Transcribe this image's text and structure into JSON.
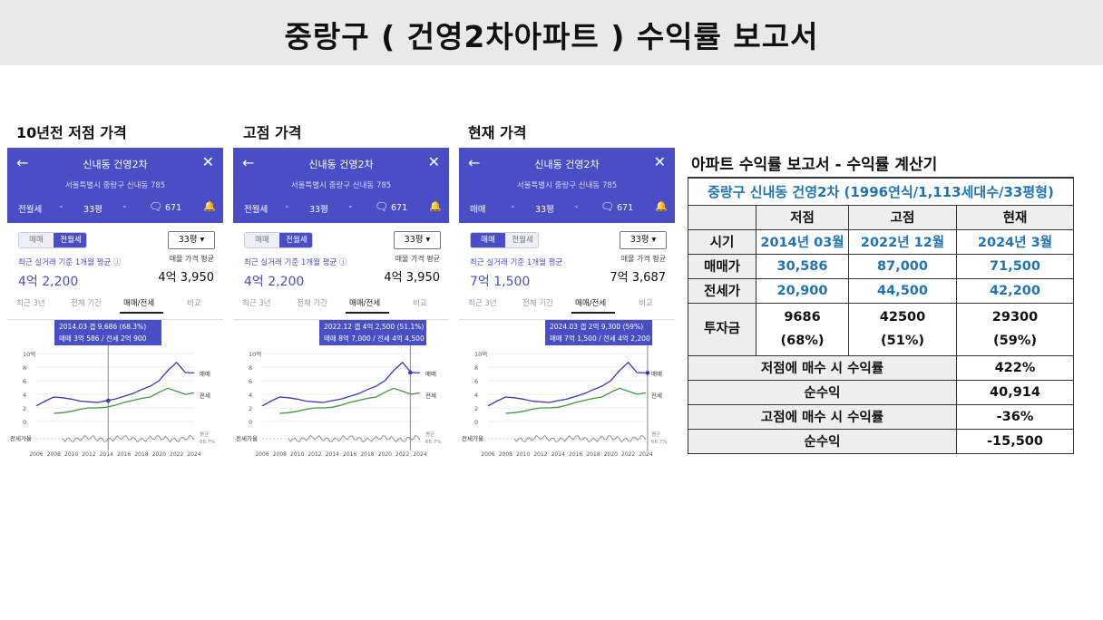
{
  "slide": {
    "title": "중랑구 ( 건영2차아파트 ) 수익률 보고서"
  },
  "sections": [
    {
      "label": "10년전 저점 가격"
    },
    {
      "label": "고점 가격"
    },
    {
      "label": "현재 가격"
    }
  ],
  "phones": [
    {
      "header": {
        "back_icon": "←",
        "title": "신내동 건영2차",
        "close_icon": "✕",
        "address": "서울특별시 중랑구 신내동 785",
        "type_select": "전월세",
        "size_select": "33평",
        "comment_count": "671"
      },
      "toggle": {
        "left": "매매",
        "right": "전월세",
        "active": "right"
      },
      "size_box": "33평 ▾",
      "avg_label": "최근 실거래 기준 1개월 평균 ⓘ",
      "avg_price": "4억 2,200",
      "listing_label": "매물 가격 평균",
      "listing_price": "4억 3,950",
      "tabs": [
        "최근 3년",
        "전체 기간",
        "매매/전세",
        "비교"
      ],
      "tooltip": {
        "line1": "2014.03  갭 9,686 (68.3%)",
        "line2": "매매 3억 586 / 전세 2억 900"
      },
      "marker_year": 2014.2
    },
    {
      "header": {
        "back_icon": "←",
        "title": "신내동 건영2차",
        "close_icon": "✕",
        "address": "서울특별시 중랑구 신내동 785",
        "type_select": "전월세",
        "size_select": "33평",
        "comment_count": "671"
      },
      "toggle": {
        "left": "매매",
        "right": "전월세",
        "active": "right"
      },
      "size_box": "33평 ▾",
      "avg_label": "최근 실거래 기준 1개월 평균 ⓘ",
      "avg_price": "4억 2,200",
      "listing_label": "매물 가격 평균",
      "listing_price": "4억 3,950",
      "tabs": [
        "최근 3년",
        "전체 기간",
        "매매/전세",
        "비교"
      ],
      "tooltip": {
        "line1": "2022.12  갭 4억 2,500 (51.1%)",
        "line2": "매매 8억 7,000 / 전세 4억 4,500"
      },
      "marker_year": 2022.9
    },
    {
      "header": {
        "back_icon": "←",
        "title": "신내동 건영2차",
        "close_icon": "✕",
        "address": "서울특별시 중랑구 신내동 785",
        "type_select": "매매",
        "size_select": "33평",
        "comment_count": "671"
      },
      "toggle": {
        "left": "매매",
        "right": "전월세",
        "active": "left"
      },
      "size_box": "33평 ▾",
      "avg_label": "최근 실거래 기준 1개월 평균",
      "avg_price": "7억 1,500",
      "listing_label": "매물 가격 평균",
      "listing_price": "7억 3,687",
      "tabs": [
        "최근 3년",
        "전체 기간",
        "매매/전세",
        "비교"
      ],
      "tooltip": {
        "line1": "2024.03  갭 2억 9,300 (59%)",
        "line2": "매매 7억 1,500 / 전세 4억 2,200"
      },
      "marker_year": 2024.2
    }
  ],
  "icons": {
    "comment": "comment-icon",
    "bell": "bell-icon",
    "dropdown": "chevron-down-icon",
    "back": "back-arrow-icon",
    "close": "close-icon"
  },
  "colors": {
    "header_bg": "#4a4ec6",
    "sale_line": "#3a35c7",
    "jeonse_line": "#3c9a3c",
    "ratio_line": "#8a8a8a",
    "table_blue": "#1f74b8"
  },
  "chart_data": {
    "type": "line",
    "x": [
      2006,
      2007,
      2008,
      2009,
      2010,
      2011,
      2012,
      2013,
      2014,
      2015,
      2016,
      2017,
      2018,
      2019,
      2020,
      2021,
      2022,
      2023,
      2024
    ],
    "x_ticks": [
      "2006",
      "2008",
      "2010",
      "2012",
      "2014",
      "2016",
      "2018",
      "2020",
      "2022",
      "2024"
    ],
    "y_ticks": [
      "10억",
      "8",
      "6",
      "4",
      "2",
      "0"
    ],
    "ylim": [
      0,
      10
    ],
    "series": [
      {
        "name": "매매",
        "values": [
          2.3,
          3.0,
          3.6,
          3.5,
          3.3,
          3.0,
          2.9,
          2.8,
          3.06,
          3.3,
          3.7,
          4.1,
          4.7,
          5.2,
          6.0,
          7.5,
          8.7,
          7.2,
          7.15
        ]
      },
      {
        "name": "전세",
        "values": [
          null,
          null,
          1.2,
          1.3,
          1.5,
          1.8,
          2.0,
          2.0,
          2.09,
          2.4,
          2.8,
          3.1,
          3.4,
          3.6,
          4.3,
          4.9,
          4.45,
          4.0,
          4.22
        ]
      }
    ],
    "ratio_label": "전세가율",
    "ratio_legend": "평균",
    "ratio_value": "66.7%"
  },
  "calculator": {
    "title": "아파트 수익률 보고서 - 수익률 계산기",
    "table_title": "중랑구 신내동 건영2차 (1996연식/1,113세대수/33평형)",
    "header": [
      "",
      "저점",
      "고점",
      "현재"
    ],
    "rows": [
      {
        "label": "시기",
        "values": [
          "2014년 03월",
          "2022년 12월",
          "2024년 3월"
        ]
      },
      {
        "label": "매매가",
        "values": [
          "30,586",
          "87,000",
          "71,500"
        ]
      },
      {
        "label": "전세가",
        "values": [
          "20,900",
          "44,500",
          "42,200"
        ]
      }
    ],
    "invest": {
      "label": "투자금",
      "values": [
        "9686",
        "42500",
        "29300"
      ],
      "pcts": [
        "(68%)",
        "(51%)",
        "(59%)"
      ]
    },
    "results": [
      {
        "label": "저점에 매수 시 수익률",
        "value": "422%"
      },
      {
        "label": "순수익",
        "value": "40,914"
      },
      {
        "label": "고점에 매수 시 수익률",
        "value": "-36%"
      },
      {
        "label": "순수익",
        "value": "-15,500"
      }
    ]
  }
}
